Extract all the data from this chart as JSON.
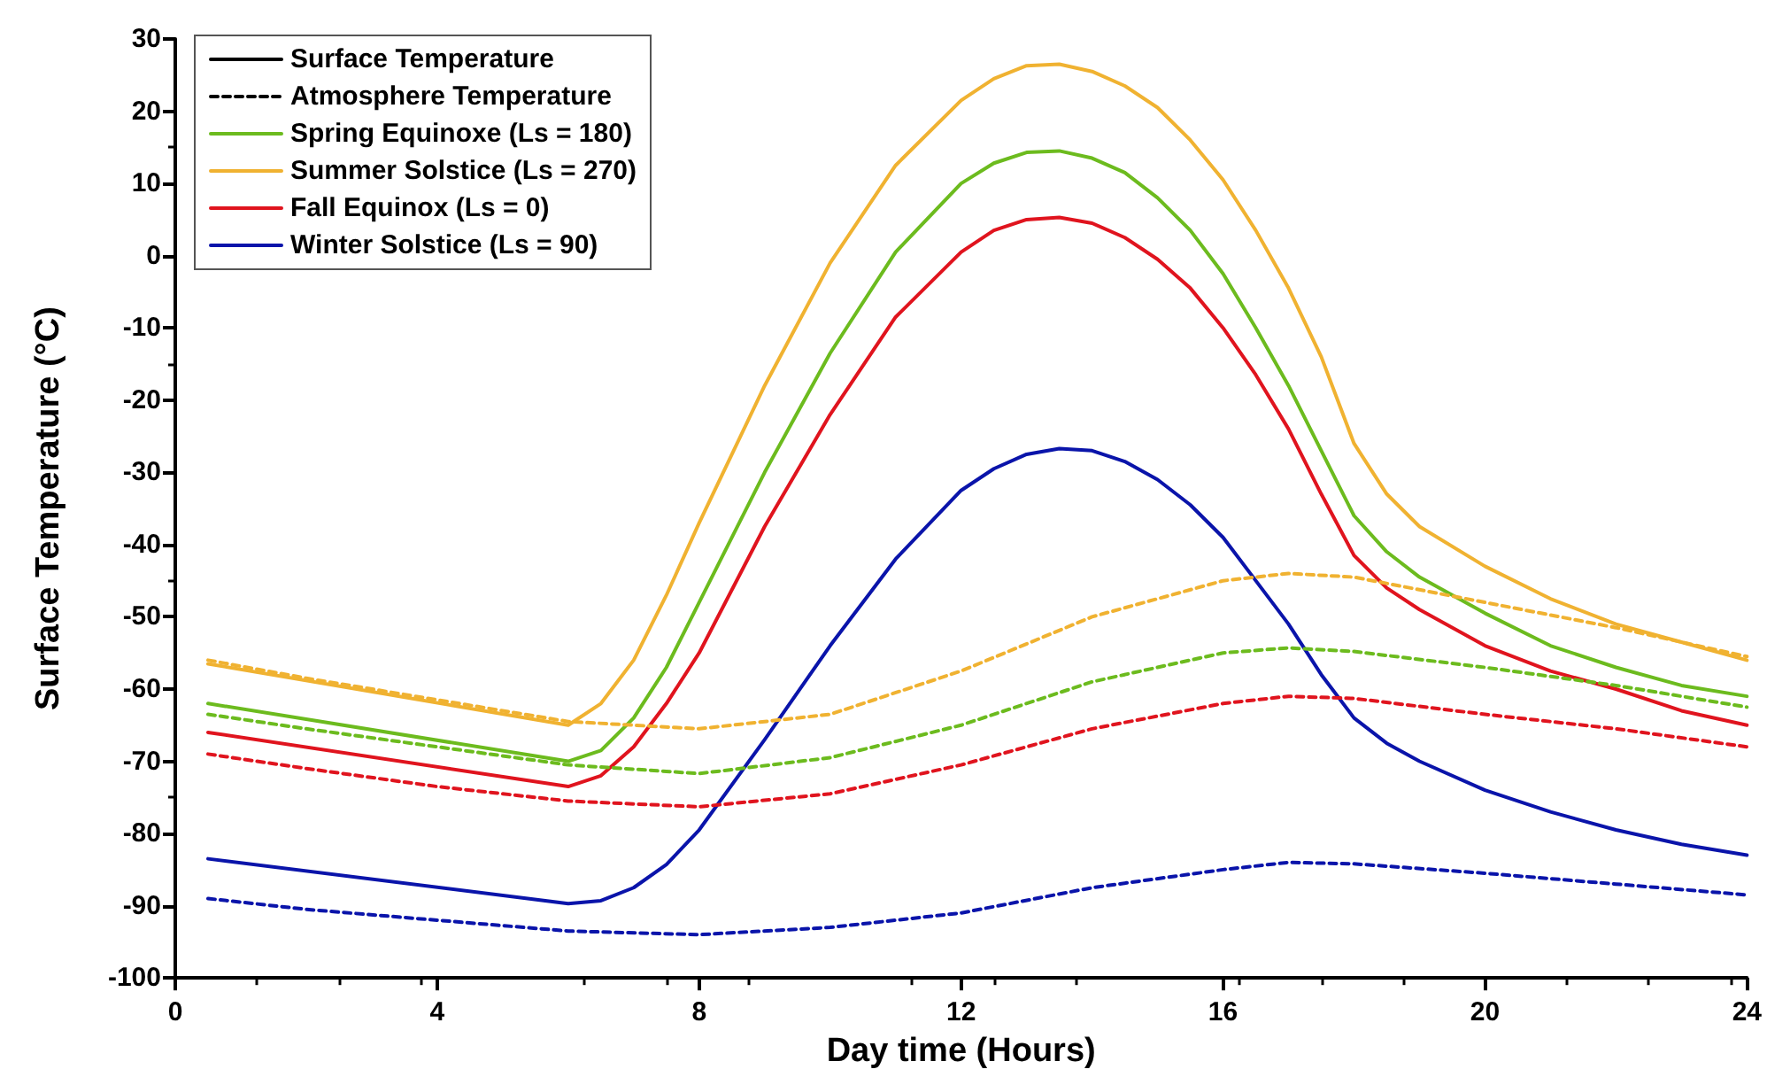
{
  "chart_data": {
    "type": "line",
    "xlabel": "Day time (Hours)",
    "ylabel": "Surface Temperature (°C)",
    "x": [
      0.5,
      6,
      6.5,
      7,
      7.5,
      8,
      9,
      10,
      11,
      12,
      12.5,
      13,
      13.5,
      14,
      14.5,
      15,
      15.5,
      16,
      16.5,
      17,
      17.5,
      18,
      18.5,
      19,
      20,
      21,
      22,
      23,
      24
    ],
    "xlim": [
      0,
      24
    ],
    "xticks": [
      0,
      4,
      8,
      12,
      16,
      20,
      24
    ],
    "ylim": [
      -100,
      30
    ],
    "yticks": [
      -100,
      -90,
      -80,
      -70,
      -60,
      -50,
      -40,
      -30,
      -20,
      -10,
      0,
      10,
      20,
      30
    ],
    "grid": false,
    "legend": "top left",
    "marker": "none",
    "series": [
      {
        "name": "Surface Temperature",
        "color": "#000000",
        "line_style": "solid",
        "values": [
          null,
          null,
          null,
          null,
          null,
          null,
          null,
          null,
          null,
          null,
          null,
          null,
          null,
          null,
          null,
          null,
          null,
          null,
          null,
          null,
          null,
          null,
          null,
          null,
          null,
          null,
          null,
          null,
          null
        ]
      },
      {
        "name": "Atmosphere Temperature",
        "color": "#000000",
        "line_style": "dashed",
        "values": [
          null,
          null,
          null,
          null,
          null,
          null,
          null,
          null,
          null,
          null,
          null,
          null,
          null,
          null,
          null,
          null,
          null,
          null,
          null,
          null,
          null,
          null,
          null,
          null,
          null,
          null,
          null,
          null,
          null
        ]
      },
      {
        "name": "Spring Equinoxe (Ls = 180)",
        "color": "#6cbb1e",
        "line_style": "solid",
        "values": [
          -62,
          -70,
          -68.5,
          -64,
          -57,
          -48,
          -30,
          -13.5,
          0.5,
          10,
          12.8,
          14.3,
          14.5,
          13.5,
          11.5,
          8,
          3.5,
          -2.5,
          -10,
          -18,
          -27,
          -36,
          -41,
          -44.5,
          -49.5,
          -54,
          -57,
          -59.5,
          -61
        ]
      },
      {
        "name": "Summer Solstice (Ls = 270)",
        "color": "#f0b231",
        "line_style": "solid",
        "values": [
          -56.5,
          -65,
          -62,
          -56,
          -47,
          -37,
          -18,
          -1,
          12.5,
          21.5,
          24.5,
          26.3,
          26.5,
          25.5,
          23.5,
          20.5,
          16,
          10.5,
          3.5,
          -4.5,
          -14,
          -26,
          -33,
          -37.5,
          -43,
          -47.5,
          -51,
          -53.5,
          -56
        ]
      },
      {
        "name": "Fall Equinox (Ls = 0)",
        "color": "#e0141e",
        "line_style": "solid",
        "values": [
          -66,
          -73.5,
          -72,
          -68,
          -62,
          -55,
          -37.5,
          -22,
          -8.5,
          0.5,
          3.5,
          5,
          5.3,
          4.5,
          2.5,
          -0.5,
          -4.5,
          -10,
          -16.5,
          -24,
          -33,
          -41.5,
          -46,
          -49,
          -54,
          -57.5,
          -60,
          -63,
          -65
        ]
      },
      {
        "name": "Winter Solstice (Ls = 90)",
        "color": "#0a14aa",
        "line_style": "solid",
        "values": [
          -83.5,
          -89.7,
          -89.3,
          -87.5,
          -84.3,
          -79.5,
          -67,
          -54,
          -42,
          -32.5,
          -29.5,
          -27.5,
          -26.7,
          -27,
          -28.5,
          -31,
          -34.5,
          -39,
          -45,
          -51,
          -58,
          -64,
          -67.5,
          -70,
          -74,
          -77,
          -79.5,
          -81.5,
          -83
        ]
      },
      {
        "color": "#6cbb1e",
        "line_style": "dashed",
        "x": [
          0.5,
          2,
          4,
          6,
          8,
          10,
          12,
          14,
          16,
          17,
          18,
          20,
          22,
          24
        ],
        "values": [
          -63.5,
          -65.5,
          -68,
          -70.5,
          -71.7,
          -69.5,
          -65,
          -59,
          -55,
          -54.3,
          -54.8,
          -57,
          -59.5,
          -62.5
        ]
      },
      {
        "color": "#f0b231",
        "line_style": "dashed",
        "x": [
          0.5,
          2,
          4,
          6,
          8,
          10,
          12,
          14,
          16,
          17,
          18,
          20,
          22,
          24
        ],
        "values": [
          -56,
          -58.5,
          -61.5,
          -64.5,
          -65.5,
          -63.5,
          -57.5,
          -50,
          -45,
          -44,
          -44.5,
          -48,
          -51.5,
          -55.5
        ]
      },
      {
        "color": "#e0141e",
        "line_style": "dashed",
        "x": [
          0.5,
          2,
          4,
          6,
          8,
          10,
          12,
          14,
          16,
          17,
          18,
          20,
          22,
          24
        ],
        "values": [
          -69,
          -71,
          -73.5,
          -75.5,
          -76.3,
          -74.5,
          -70.5,
          -65.5,
          -62,
          -61,
          -61.3,
          -63.5,
          -65.5,
          -68
        ]
      },
      {
        "color": "#0a14aa",
        "line_style": "dashed",
        "x": [
          0.5,
          2,
          4,
          6,
          8,
          10,
          12,
          14,
          16,
          17,
          18,
          20,
          22,
          24
        ],
        "values": [
          -89,
          -90.5,
          -92,
          -93.5,
          -94,
          -93,
          -91,
          -87.5,
          -85,
          -84,
          -84.2,
          -85.5,
          -87,
          -88.5
        ]
      }
    ]
  }
}
